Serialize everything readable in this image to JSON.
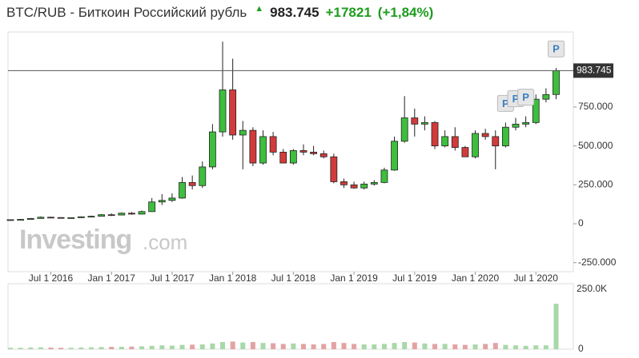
{
  "header": {
    "title": "BTC/RUB - Биткоин Российский рубль",
    "price": "983.745",
    "change": "+17821",
    "change_percent": "(+1,84%)",
    "watermark": [
      "Investing",
      ".com"
    ]
  },
  "chart_data": [
    {
      "type": "candlestick",
      "x": [
        "2016-03",
        "2016-04",
        "2016-05",
        "2016-06",
        "2016-07",
        "2016-08",
        "2016-09",
        "2016-10",
        "2016-11",
        "2016-12",
        "2017-01",
        "2017-02",
        "2017-03",
        "2017-04",
        "2017-05",
        "2017-06",
        "2017-07",
        "2017-08",
        "2017-09",
        "2017-10",
        "2017-11",
        "2017-12",
        "2018-01",
        "2018-02",
        "2018-03",
        "2018-04",
        "2018-05",
        "2018-06",
        "2018-07",
        "2018-08",
        "2018-09",
        "2018-10",
        "2018-11",
        "2018-12",
        "2019-01",
        "2019-02",
        "2019-03",
        "2019-04",
        "2019-05",
        "2019-06",
        "2019-07",
        "2019-08",
        "2019-09",
        "2019-10",
        "2019-11",
        "2019-12",
        "2020-01",
        "2020-02",
        "2020-03",
        "2020-04",
        "2020-05",
        "2020-06",
        "2020-07",
        "2020-08",
        "2020-09"
      ],
      "open": [
        24000,
        26000,
        28000,
        34000,
        42000,
        40000,
        37000,
        39000,
        45000,
        48000,
        58000,
        56000,
        68000,
        62000,
        78000,
        140000,
        150000,
        165000,
        265000,
        245000,
        365000,
        590000,
        860000,
        570000,
        600000,
        390000,
        560000,
        460000,
        390000,
        470000,
        460000,
        450000,
        430000,
        270000,
        250000,
        230000,
        255000,
        265000,
        345000,
        530000,
        680000,
        640000,
        650000,
        500000,
        560000,
        490000,
        430000,
        580000,
        560000,
        500000,
        620000,
        640000,
        650000,
        800000,
        830000
      ],
      "high": [
        28000,
        31000,
        37000,
        47000,
        45000,
        42000,
        41000,
        47000,
        52000,
        62000,
        66000,
        72000,
        75000,
        85000,
        165000,
        190000,
        195000,
        300000,
        310000,
        400000,
        640000,
        1170000,
        1060000,
        660000,
        620000,
        600000,
        590000,
        480000,
        480000,
        510000,
        500000,
        470000,
        450000,
        290000,
        270000,
        270000,
        280000,
        360000,
        560000,
        820000,
        740000,
        690000,
        660000,
        600000,
        620000,
        500000,
        600000,
        610000,
        600000,
        650000,
        680000,
        690000,
        830000,
        870000,
        1000000
      ],
      "low": [
        23000,
        25000,
        27000,
        33000,
        36000,
        35000,
        35000,
        38000,
        43000,
        47000,
        50000,
        54000,
        58000,
        60000,
        76000,
        120000,
        140000,
        160000,
        220000,
        230000,
        350000,
        560000,
        540000,
        350000,
        370000,
        380000,
        440000,
        390000,
        380000,
        440000,
        440000,
        420000,
        260000,
        230000,
        225000,
        220000,
        245000,
        260000,
        340000,
        520000,
        560000,
        600000,
        480000,
        490000,
        470000,
        430000,
        420000,
        540000,
        350000,
        490000,
        600000,
        620000,
        640000,
        780000,
        800000
      ],
      "close": [
        26000,
        28000,
        34000,
        42000,
        40000,
        37000,
        39000,
        45000,
        48000,
        58000,
        56000,
        68000,
        62000,
        78000,
        140000,
        150000,
        165000,
        265000,
        245000,
        365000,
        590000,
        860000,
        570000,
        600000,
        390000,
        560000,
        460000,
        390000,
        470000,
        460000,
        450000,
        430000,
        270000,
        250000,
        230000,
        255000,
        265000,
        345000,
        530000,
        680000,
        640000,
        650000,
        500000,
        560000,
        490000,
        430000,
        580000,
        560000,
        500000,
        620000,
        640000,
        650000,
        800000,
        830000,
        983745
      ],
      "up_color": "#3dbf3d",
      "down_color": "#d23b3b",
      "xticks": [
        {
          "value": "2016-07",
          "label": "Jul 1 2016"
        },
        {
          "value": "2017-01",
          "label": "Jan 1 2017"
        },
        {
          "value": "2017-07",
          "label": "Jul 1 2017"
        },
        {
          "value": "2018-01",
          "label": "Jan 1 2018"
        },
        {
          "value": "2018-07",
          "label": "Jul 1 2018"
        },
        {
          "value": "2019-01",
          "label": "Jan 1 2019"
        },
        {
          "value": "2019-07",
          "label": "Jul 1 2019"
        },
        {
          "value": "2020-01",
          "label": "Jan 1 2020"
        },
        {
          "value": "2020-07",
          "label": "Jul 1 2020"
        }
      ],
      "ylim": [
        -308000,
        1232000
      ],
      "yticks": [
        {
          "value": -250000,
          "label": "-250.000"
        },
        0,
        {
          "value": 250000,
          "label": "250.000"
        },
        {
          "value": 500000,
          "label": "500.000"
        },
        {
          "value": 750000,
          "label": "750.000"
        }
      ],
      "markers": [
        {
          "x": "2020-04",
          "label": "P"
        },
        {
          "x": "2020-05",
          "label": "P"
        },
        {
          "x": "2020-06",
          "label": "P"
        },
        {
          "x": "2020-09",
          "label": "P"
        }
      ]
    },
    {
      "type": "bar",
      "values": [
        6000,
        6000,
        7000,
        8000,
        7000,
        6000,
        6000,
        7000,
        8000,
        9000,
        10000,
        10000,
        11000,
        12000,
        14000,
        16000,
        15000,
        18000,
        19000,
        20000,
        24000,
        30000,
        32000,
        28000,
        30000,
        26000,
        25000,
        22000,
        24000,
        22000,
        20000,
        22000,
        30000,
        26000,
        22000,
        20000,
        20000,
        22000,
        26000,
        30000,
        28000,
        24000,
        22000,
        22000,
        20000,
        18000,
        20000,
        22000,
        26000,
        18000,
        16000,
        14000,
        16000,
        16000,
        190000
      ],
      "up_color": "#a8d8a8",
      "down_color": "#e3a3a3",
      "ylim": [
        0,
        250000
      ],
      "yticks": [
        0,
        {
          "value": 250000,
          "label": "250.0K"
        }
      ]
    }
  ]
}
